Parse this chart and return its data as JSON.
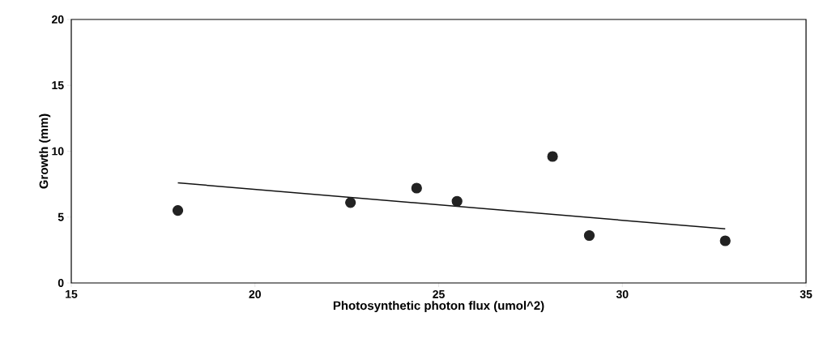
{
  "chart_data": {
    "type": "scatter",
    "xlabel": "Photosynthetic photon flux (umol^2)",
    "ylabel": "Growth (mm)",
    "xlim": [
      15,
      35
    ],
    "ylim": [
      0,
      20
    ],
    "xticks": [
      15,
      20,
      25,
      30,
      35
    ],
    "yticks": [
      0,
      5,
      10,
      15,
      20
    ],
    "grid": false,
    "marker": "circle",
    "series": [
      {
        "type": "scatter",
        "color": "#222222",
        "x": [
          17.9,
          22.6,
          24.4,
          25.5,
          28.1,
          29.1,
          32.8
        ],
        "values": [
          5.5,
          6.1,
          7.2,
          6.2,
          9.6,
          3.6,
          3.2
        ]
      },
      {
        "type": "line",
        "marker": "none",
        "color": "#111111",
        "x": [
          17.9,
          32.8
        ],
        "values": [
          7.6,
          4.1
        ]
      }
    ]
  }
}
